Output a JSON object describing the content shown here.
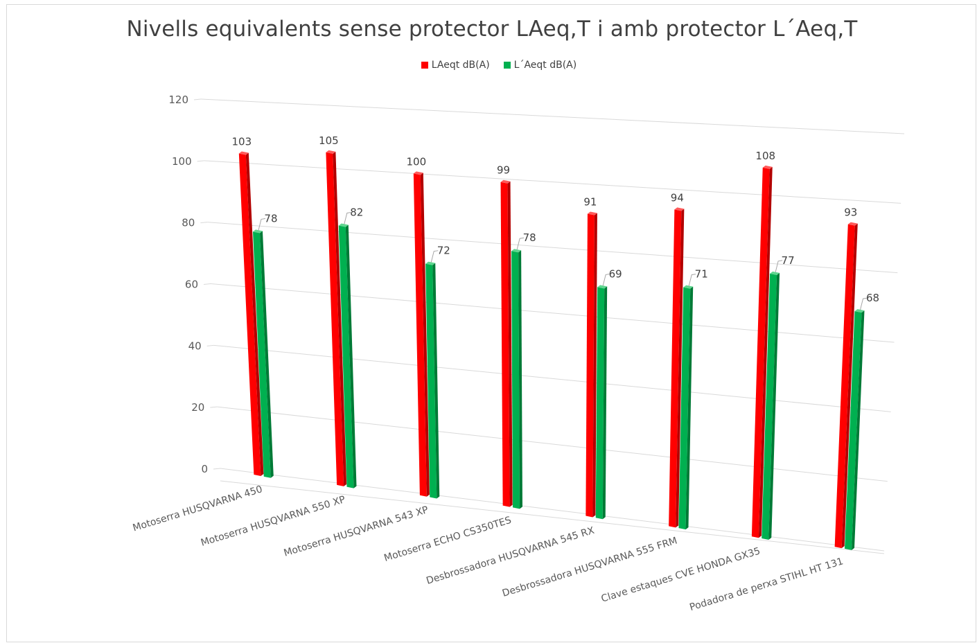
{
  "chart_data": {
    "type": "bar",
    "title": "Nivells equivalents sense protector LAeq,T i amb protector L´Aeq,T",
    "categories": [
      "Motoserra HUSQVARNA 450",
      "Motoserra HUSQVARNA 550 XP",
      "Motoserra HUSQVARNA 543 XP",
      "Motoserra ECHO CS350TES",
      "Desbrossadora HUSQVARNA 545 RX",
      "Desbrossadora HUSQVARNA  555 FRM",
      "Clave estaques CVE HONDA GX35",
      "Podadora de perxa STIHL HT 131"
    ],
    "series": [
      {
        "name": "LAeqt dB(A)",
        "color": "#ff0000",
        "values": [
          103,
          105,
          100,
          99,
          91,
          94,
          108,
          93
        ]
      },
      {
        "name": "L´Aeqt dB(A)",
        "color": "#00b050",
        "values": [
          78,
          82,
          72,
          78,
          69,
          71,
          77,
          68
        ]
      }
    ],
    "xlabel": "",
    "ylabel": "",
    "ylim": [
      0,
      120
    ],
    "yticks": [
      "0",
      "20",
      "40",
      "60",
      "80",
      "100",
      "120"
    ],
    "grid": true,
    "legend": "top",
    "perspective": "3d"
  }
}
